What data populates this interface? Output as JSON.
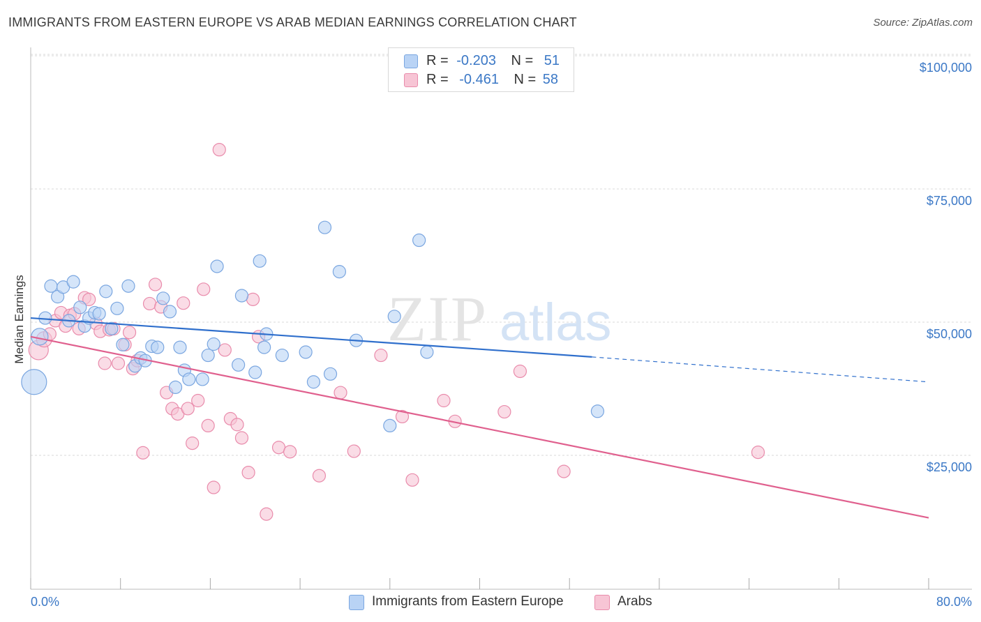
{
  "title": "IMMIGRANTS FROM EASTERN EUROPE VS ARAB MEDIAN EARNINGS CORRELATION CHART",
  "source": "Source: ZipAtlas.com",
  "watermark": {
    "zip": "ZIP",
    "atlas": "atlas"
  },
  "legend": {
    "r_label": "R =",
    "n_label": "N =",
    "blue": {
      "r": "-0.203",
      "n": "51"
    },
    "pink": {
      "r": "-0.461",
      "n": "58"
    }
  },
  "colors": {
    "blue_fill": "#b9d3f5",
    "blue_stroke": "#7aa6e0",
    "blue_line": "#2f6fcc",
    "pink_fill": "#f7c5d5",
    "pink_stroke": "#e98bab",
    "pink_line": "#e0608e",
    "grid": "#d9d9d9",
    "axis_text": "#3b78c6"
  },
  "chart_data": {
    "type": "scatter",
    "title": "IMMIGRANTS FROM EASTERN EUROPE VS ARAB MEDIAN EARNINGS CORRELATION CHART",
    "xlabel": "",
    "ylabel": "Median Earnings",
    "xlim": [
      0,
      80
    ],
    "ylim": [
      0,
      105000
    ],
    "x_tick_labels": [
      "0.0%",
      "80.0%"
    ],
    "y_ticks": [
      25000,
      50000,
      75000,
      100000
    ],
    "y_tick_labels": [
      "$25,000",
      "$50,000",
      "$75,000",
      "$100,000"
    ],
    "grid": true,
    "legend_position": "top-center",
    "series": [
      {
        "name": "Immigrants from Eastern Europe",
        "color": "#7aa6e0",
        "trend": {
          "x": [
            0,
            50,
            80
          ],
          "y": [
            53000,
            45700,
            41000
          ],
          "solid_until": 50
        },
        "points": [
          [
            0.3,
            41000,
            18
          ],
          [
            0.8,
            49500,
            12
          ],
          [
            1.3,
            53000,
            9
          ],
          [
            1.8,
            59000,
            9
          ],
          [
            2.4,
            57000,
            9
          ],
          [
            2.9,
            58800,
            9
          ],
          [
            3.4,
            52500,
            9
          ],
          [
            3.8,
            59800,
            9
          ],
          [
            4.4,
            55000,
            9
          ],
          [
            4.8,
            51500,
            9
          ],
          [
            5.2,
            53000,
            9
          ],
          [
            5.7,
            54000,
            9
          ],
          [
            6.1,
            53800,
            9
          ],
          [
            6.7,
            58000,
            9
          ],
          [
            7.2,
            51000,
            9
          ],
          [
            7.7,
            54800,
            9
          ],
          [
            8.2,
            48000,
            9
          ],
          [
            8.7,
            59000,
            9
          ],
          [
            9.3,
            44000,
            9
          ],
          [
            9.8,
            45500,
            9
          ],
          [
            10.2,
            45000,
            9
          ],
          [
            10.8,
            47700,
            9
          ],
          [
            11.3,
            47500,
            9
          ],
          [
            11.8,
            56700,
            9
          ],
          [
            12.4,
            54200,
            9
          ],
          [
            12.9,
            40000,
            9
          ],
          [
            13.3,
            47500,
            9
          ],
          [
            13.7,
            43200,
            9
          ],
          [
            14.1,
            41500,
            9
          ],
          [
            15.3,
            41500,
            9
          ],
          [
            15.8,
            46000,
            9
          ],
          [
            16.3,
            48100,
            9
          ],
          [
            16.6,
            62700,
            9
          ],
          [
            18.5,
            44200,
            9
          ],
          [
            18.8,
            57200,
            9
          ],
          [
            20.0,
            42800,
            9
          ],
          [
            20.4,
            63700,
            9
          ],
          [
            20.8,
            47500,
            9
          ],
          [
            21.0,
            50000,
            9
          ],
          [
            22.4,
            46000,
            9
          ],
          [
            24.5,
            46600,
            9
          ],
          [
            25.2,
            41000,
            9
          ],
          [
            26.2,
            70000,
            9
          ],
          [
            26.7,
            42500,
            9
          ],
          [
            27.5,
            61700,
            9
          ],
          [
            29.0,
            48800,
            9
          ],
          [
            32.0,
            32800,
            9
          ],
          [
            32.4,
            53300,
            9
          ],
          [
            34.6,
            67600,
            9
          ],
          [
            35.3,
            46600,
            9
          ],
          [
            50.5,
            35500,
            9
          ]
        ]
      },
      {
        "name": "Arabs",
        "color": "#e98bab",
        "trend": {
          "x": [
            0,
            80
          ],
          "y": [
            49500,
            15500
          ],
          "solid_until": 80
        },
        "points": [
          [
            0.7,
            47000,
            14
          ],
          [
            1.2,
            49000,
            11
          ],
          [
            1.7,
            50000,
            9
          ],
          [
            2.2,
            52500,
            9
          ],
          [
            2.7,
            54000,
            9
          ],
          [
            3.1,
            51500,
            9
          ],
          [
            3.5,
            53500,
            9
          ],
          [
            3.9,
            53800,
            9
          ],
          [
            4.3,
            51000,
            9
          ],
          [
            4.8,
            56800,
            9
          ],
          [
            5.2,
            56500,
            9
          ],
          [
            5.8,
            52000,
            9
          ],
          [
            6.2,
            50500,
            9
          ],
          [
            6.6,
            44500,
            9
          ],
          [
            7.0,
            50800,
            9
          ],
          [
            7.4,
            51000,
            9
          ],
          [
            7.8,
            44500,
            9
          ],
          [
            8.4,
            48000,
            9
          ],
          [
            8.8,
            50300,
            9
          ],
          [
            9.1,
            43500,
            9
          ],
          [
            9.5,
            45000,
            9
          ],
          [
            10.0,
            27700,
            9
          ],
          [
            10.6,
            55700,
            9
          ],
          [
            11.1,
            59300,
            9
          ],
          [
            11.6,
            55100,
            9
          ],
          [
            12.1,
            39000,
            9
          ],
          [
            12.6,
            36000,
            9
          ],
          [
            13.1,
            35000,
            9
          ],
          [
            13.6,
            55800,
            9
          ],
          [
            14.0,
            36000,
            9
          ],
          [
            14.4,
            29500,
            9
          ],
          [
            14.9,
            37500,
            9
          ],
          [
            15.4,
            58400,
            9
          ],
          [
            15.8,
            32800,
            9
          ],
          [
            16.3,
            21200,
            9
          ],
          [
            16.8,
            84600,
            9
          ],
          [
            17.3,
            47000,
            9
          ],
          [
            17.8,
            34100,
            9
          ],
          [
            18.4,
            33000,
            9
          ],
          [
            18.8,
            30500,
            9
          ],
          [
            19.4,
            24000,
            9
          ],
          [
            19.8,
            56500,
            9
          ],
          [
            20.3,
            49500,
            9
          ],
          [
            21.0,
            16200,
            9
          ],
          [
            22.1,
            28700,
            9
          ],
          [
            23.1,
            27900,
            9
          ],
          [
            25.7,
            23400,
            9
          ],
          [
            27.6,
            39000,
            9
          ],
          [
            28.8,
            28000,
            9
          ],
          [
            31.2,
            46000,
            9
          ],
          [
            33.1,
            34500,
            9
          ],
          [
            34.0,
            22600,
            9
          ],
          [
            36.8,
            37500,
            9
          ],
          [
            37.8,
            33600,
            9
          ],
          [
            42.2,
            35400,
            9
          ],
          [
            43.6,
            43000,
            9
          ],
          [
            47.5,
            24200,
            9
          ],
          [
            64.8,
            27800,
            9
          ]
        ]
      }
    ]
  },
  "bottom_legend": {
    "blue": "Immigrants from Eastern Europe",
    "pink": "Arabs"
  }
}
